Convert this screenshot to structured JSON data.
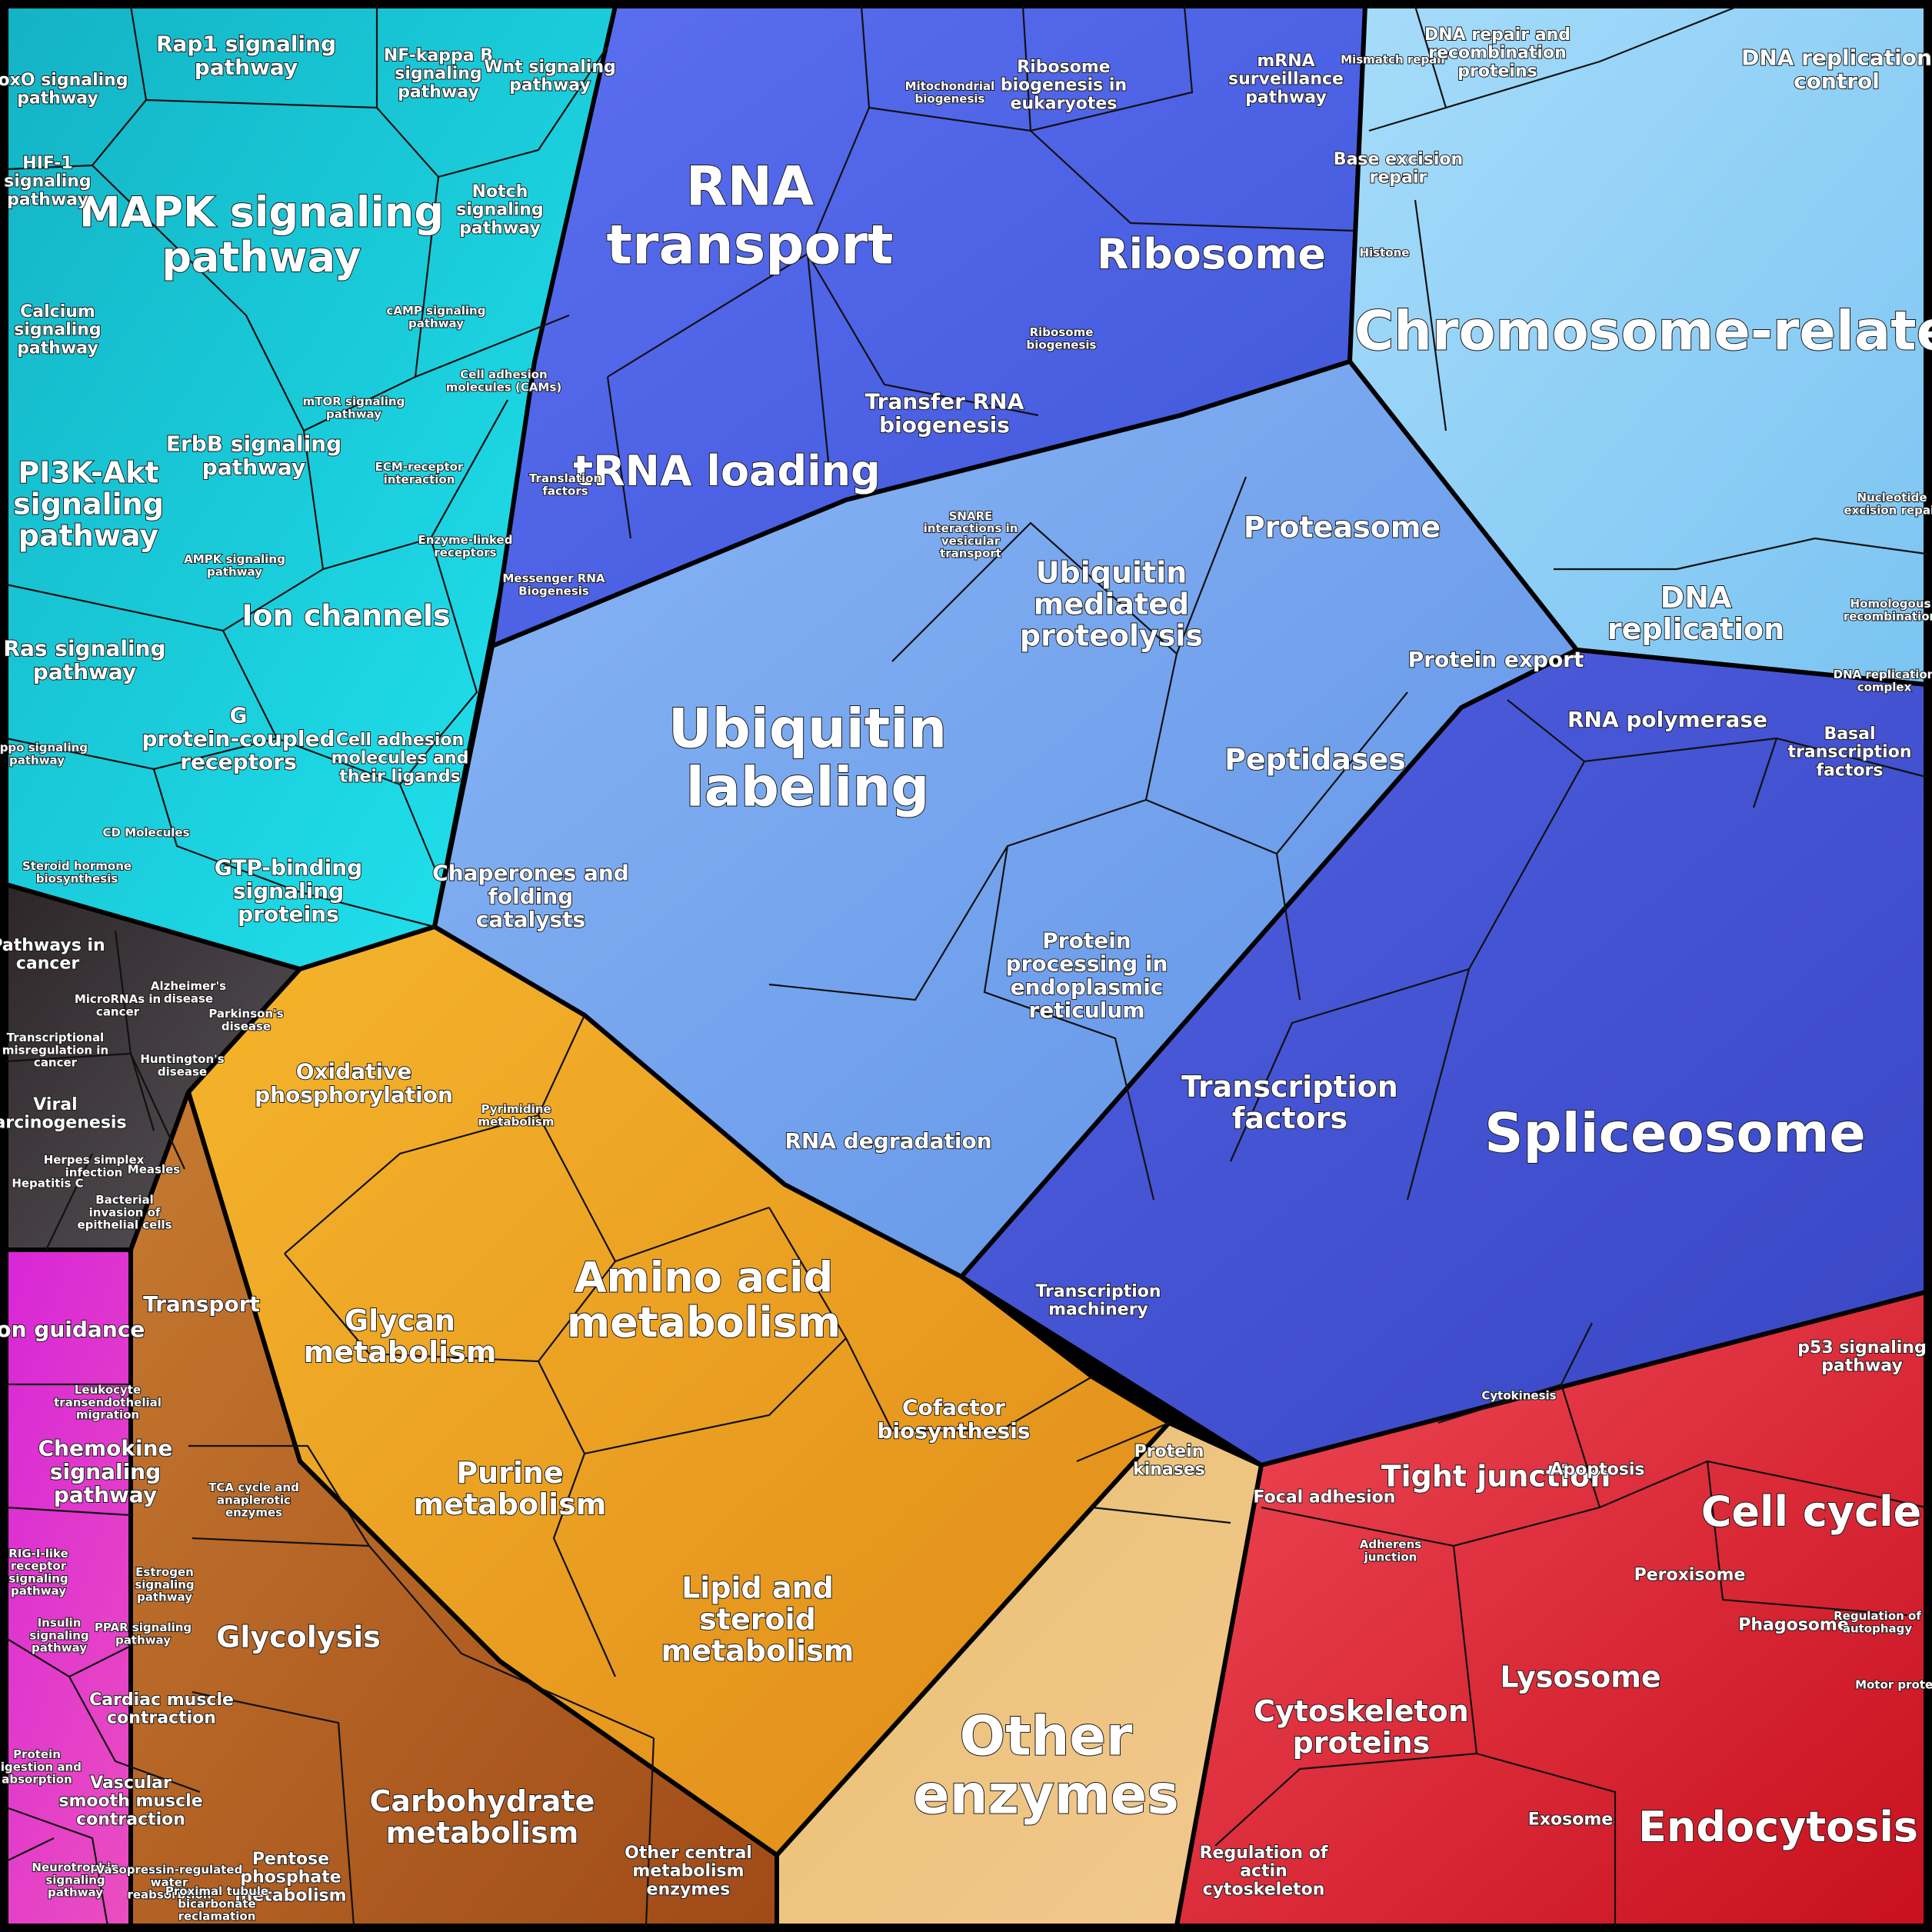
{
  "groups": [
    {
      "id": "signaling",
      "color": "#19c7d6",
      "labels": [
        {
          "text": "MAPK signaling pathway",
          "size": "xl"
        },
        {
          "text": "Rap1 signaling pathway",
          "size": "m"
        },
        {
          "text": "FoxO signaling pathway",
          "size": "s"
        },
        {
          "text": "NF-kappa B signaling pathway",
          "size": "s"
        },
        {
          "text": "Wnt signaling pathway",
          "size": "s"
        },
        {
          "text": "HIF-1 signaling pathway",
          "size": "s"
        },
        {
          "text": "Notch signaling pathway",
          "size": "s"
        },
        {
          "text": "Calcium signaling pathway",
          "size": "s"
        },
        {
          "text": "cAMP signaling pathway",
          "size": "xs"
        },
        {
          "text": "mTOR signaling pathway",
          "size": "xs"
        },
        {
          "text": "ErbB signaling pathway",
          "size": "m"
        },
        {
          "text": "PI3K-Akt signaling pathway",
          "size": "l"
        },
        {
          "text": "Cell adhesion molecules (CAMs)",
          "size": "xs"
        },
        {
          "text": "ECM-receptor interaction",
          "size": "xs"
        },
        {
          "text": "Enzyme-linked receptors",
          "size": "xs"
        },
        {
          "text": "AMPK signaling pathway",
          "size": "xs"
        },
        {
          "text": "Ion channels",
          "size": "l"
        },
        {
          "text": "Ras signaling pathway",
          "size": "m"
        },
        {
          "text": "G protein-coupled receptors",
          "size": "m"
        },
        {
          "text": "Cell adhesion molecules and their ligands",
          "size": "s"
        },
        {
          "text": "Hippo signaling pathway",
          "size": "xs"
        },
        {
          "text": "CD Molecules",
          "size": "xs"
        },
        {
          "text": "Steroid hormone biosynthesis",
          "size": "xs"
        },
        {
          "text": "GTP-binding signaling proteins",
          "size": "m"
        }
      ]
    },
    {
      "id": "rna",
      "color": "#4f63e6",
      "labels": [
        {
          "text": "RNA transport",
          "size": "xxl"
        },
        {
          "text": "Mitochondrial biogenesis",
          "size": "xs"
        },
        {
          "text": "Ribosome biogenesis in eukaryotes",
          "size": "s"
        },
        {
          "text": "mRNA surveillance pathway",
          "size": "s"
        },
        {
          "text": "Ribosome",
          "size": "xl"
        },
        {
          "text": "Ribosome biogenesis",
          "size": "xs"
        },
        {
          "text": "Transfer RNA biogenesis",
          "size": "m"
        },
        {
          "text": "tRNA loading",
          "size": "xl"
        },
        {
          "text": "Translation factors",
          "size": "xs"
        },
        {
          "text": "Messenger RNA Biogenesis",
          "size": "xs"
        }
      ]
    },
    {
      "id": "chromosome",
      "color": "#8fd0f5",
      "labels": [
        {
          "text": "Mismatch repair",
          "size": "xs"
        },
        {
          "text": "DNA repair and recombination proteins",
          "size": "s"
        },
        {
          "text": "DNA replication control",
          "size": "m"
        },
        {
          "text": "Base excision repair",
          "size": "s"
        },
        {
          "text": "Histone",
          "size": "xs"
        },
        {
          "text": "Chromosome-related",
          "size": "xxl"
        },
        {
          "text": "Nucleotide excision repair",
          "size": "xs"
        },
        {
          "text": "DNA replication",
          "size": "l"
        },
        {
          "text": "Homologous recombination",
          "size": "xs"
        },
        {
          "text": "DNA replication complex",
          "size": "xs"
        }
      ]
    },
    {
      "id": "protein",
      "color": "#7aaaf0",
      "labels": [
        {
          "text": "Ubiquitin labeling",
          "size": "xxl"
        },
        {
          "text": "SNARE interactions in vesicular transport",
          "size": "xs"
        },
        {
          "text": "Ubiquitin mediated proteolysis",
          "size": "l"
        },
        {
          "text": "Proteasome",
          "size": "l"
        },
        {
          "text": "Protein export",
          "size": "m"
        },
        {
          "text": "Peptidases",
          "size": "l"
        },
        {
          "text": "Chaperones and folding catalysts",
          "size": "m"
        },
        {
          "text": "Protein processing in endoplasmic reticulum",
          "size": "m"
        },
        {
          "text": "RNA degradation",
          "size": "m"
        }
      ]
    },
    {
      "id": "transcription",
      "color": "#4754d4",
      "labels": [
        {
          "text": "RNA polymerase",
          "size": "m"
        },
        {
          "text": "Basal transcription factors",
          "size": "s"
        },
        {
          "text": "Transcription factors",
          "size": "l"
        },
        {
          "text": "Spliceosome",
          "size": "xxl"
        },
        {
          "text": "Transcription machinery",
          "size": "s"
        }
      ]
    },
    {
      "id": "disease",
      "color": "#3a3436",
      "labels": [
        {
          "text": "Pathways in cancer",
          "size": "s"
        },
        {
          "text": "MicroRNAs in cancer",
          "size": "xs"
        },
        {
          "text": "Alzheimer's disease",
          "size": "xs"
        },
        {
          "text": "Parkinson's disease",
          "size": "xs"
        },
        {
          "text": "Transcriptional misregulation in cancer",
          "size": "xs"
        },
        {
          "text": "Huntington's disease",
          "size": "xs"
        },
        {
          "text": "Viral carcinogenesis",
          "size": "s"
        },
        {
          "text": "Herpes simplex infection",
          "size": "xs"
        },
        {
          "text": "Measles",
          "size": "xs"
        },
        {
          "text": "Hepatitis C",
          "size": "xs"
        },
        {
          "text": "Bacterial invasion of epithelial cells",
          "size": "xs"
        }
      ]
    },
    {
      "id": "metabolism",
      "color": "#f0a020",
      "labels": [
        {
          "text": "Oxidative phosphorylation",
          "size": "m"
        },
        {
          "text": "Pyrimidine metabolism",
          "size": "xs"
        },
        {
          "text": "Amino acid metabolism",
          "size": "xl"
        },
        {
          "text": "Transport",
          "size": "m"
        },
        {
          "text": "Glycan metabolism",
          "size": "l"
        },
        {
          "text": "Cofactor biosynthesis",
          "size": "m"
        },
        {
          "text": "Purine metabolism",
          "size": "l"
        },
        {
          "text": "TCA cycle and anaplerotic enzymes",
          "size": "xs"
        },
        {
          "text": "Lipid and steroid metabolism",
          "size": "l"
        },
        {
          "text": "Glycolysis",
          "size": "l"
        },
        {
          "text": "Carbohydrate metabolism",
          "size": "l"
        },
        {
          "text": "Pentose phosphate metabolism",
          "size": "s"
        },
        {
          "text": "Other central metabolism enzymes",
          "size": "s"
        },
        {
          "text": "Protein kinases",
          "size": "s"
        },
        {
          "text": "Other enzymes",
          "size": "xxl"
        }
      ]
    },
    {
      "id": "cellular",
      "color": "#e63245",
      "labels": [
        {
          "text": "p53 signaling pathway",
          "size": "s"
        },
        {
          "text": "Cytokinesis",
          "size": "xs"
        },
        {
          "text": "Focal adhesion",
          "size": "s"
        },
        {
          "text": "Tight junction",
          "size": "l"
        },
        {
          "text": "Apoptosis",
          "size": "s"
        },
        {
          "text": "Cell cycle",
          "size": "xl"
        },
        {
          "text": "Adherens junction",
          "size": "xs"
        },
        {
          "text": "Peroxisome",
          "size": "s"
        },
        {
          "text": "Phagosome",
          "size": "s"
        },
        {
          "text": "Regulation of autophagy",
          "size": "xs"
        },
        {
          "text": "Lysosome",
          "size": "l"
        },
        {
          "text": "Cytoskeleton proteins",
          "size": "l"
        },
        {
          "text": "Motor proteins",
          "size": "xs"
        },
        {
          "text": "Exosome",
          "size": "s"
        },
        {
          "text": "Endocytosis",
          "size": "xl"
        },
        {
          "text": "Regulation of actin cytoskeleton",
          "size": "s"
        }
      ]
    },
    {
      "id": "organismal",
      "color": "#e23fd0",
      "labels": [
        {
          "text": "Axon guidance",
          "size": "m"
        },
        {
          "text": "Leukocyte transendothelial migration",
          "size": "xs"
        },
        {
          "text": "Chemokine signaling pathway",
          "size": "m"
        },
        {
          "text": "RIG-I-like receptor signaling pathway",
          "size": "xs"
        },
        {
          "text": "Estrogen signaling pathway",
          "size": "xs"
        },
        {
          "text": "Insulin signaling pathway",
          "size": "xs"
        },
        {
          "text": "PPAR signaling pathway",
          "size": "xs"
        },
        {
          "text": "Cardiac muscle contraction",
          "size": "s"
        },
        {
          "text": "Protein digestion and absorption",
          "size": "xs"
        },
        {
          "text": "Vascular smooth muscle contraction",
          "size": "s"
        },
        {
          "text": "Neurotrophin signaling pathway",
          "size": "xs"
        },
        {
          "text": "Vasopressin-regulated water reabsorption",
          "size": "xs"
        },
        {
          "text": "Proximal tubule bicarbonate reclamation",
          "size": "xs"
        }
      ]
    }
  ]
}
